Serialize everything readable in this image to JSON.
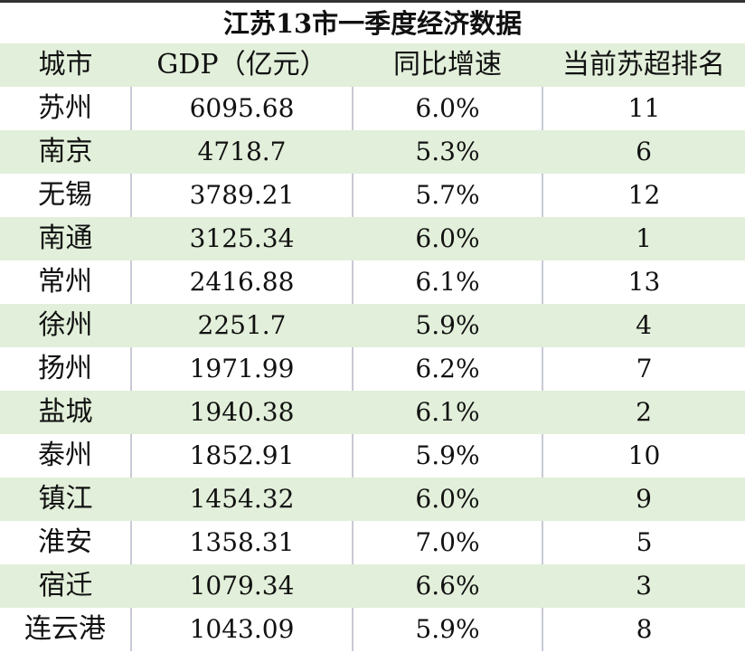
{
  "title": "江苏13市一季度经济数据",
  "columns": [
    "城市",
    "GDP（亿元）",
    "同比增速",
    "当前苏超排名"
  ],
  "rows": [
    [
      "苏州",
      "6095.68",
      "6.0%",
      "11"
    ],
    [
      "南京",
      "4718.7",
      "5.3%",
      "6"
    ],
    [
      "无锡",
      "3789.21",
      "5.7%",
      "12"
    ],
    [
      "南通",
      "3125.34",
      "6.0%",
      "1"
    ],
    [
      "常州",
      "2416.88",
      "6.1%",
      "13"
    ],
    [
      "徐州",
      "2251.7",
      "5.9%",
      "4"
    ],
    [
      "扬州",
      "1971.99",
      "6.2%",
      "7"
    ],
    [
      "盐城",
      "1940.38",
      "6.1%",
      "2"
    ],
    [
      "泰州",
      "1852.91",
      "5.9%",
      "10"
    ],
    [
      "镇江",
      "1454.32",
      "6.0%",
      "9"
    ],
    [
      "淮安",
      "1358.31",
      "7.0%",
      "5"
    ],
    [
      "宿迁",
      "1079.34",
      "6.6%",
      "3"
    ],
    [
      "连云港",
      "1043.09",
      "5.9%",
      "8"
    ]
  ],
  "colors": {
    "stripe": "#e2efda",
    "divider": "#c8cad6"
  }
}
